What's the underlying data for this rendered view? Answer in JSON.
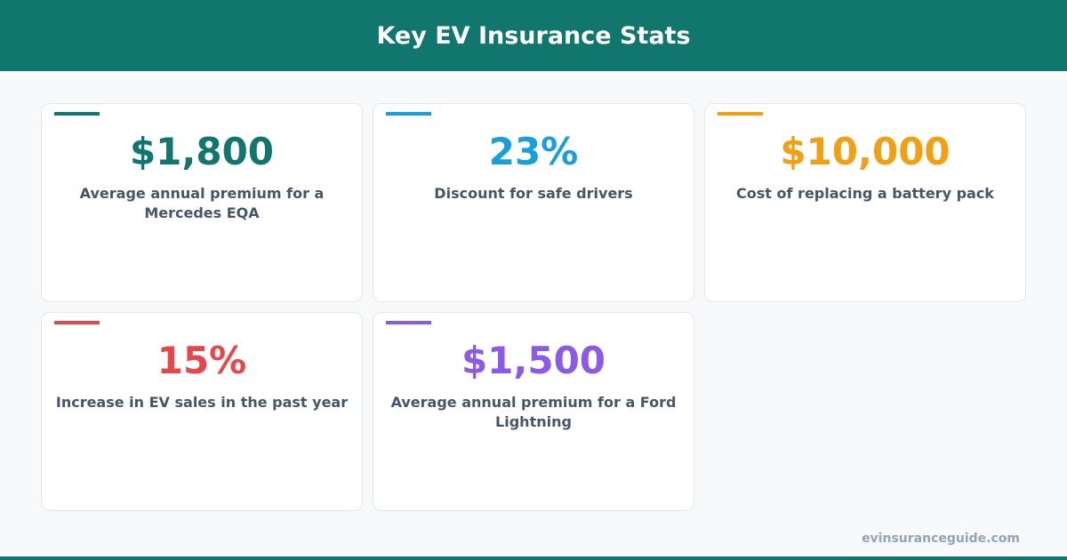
{
  "header": {
    "title": "Key EV Insurance Stats"
  },
  "cards": [
    {
      "value": "$1,800",
      "label": "Average annual premium for a Mercedes EQA",
      "color": "#11766e"
    },
    {
      "value": "23%",
      "label": "Discount for safe drivers",
      "color": "#169fd8"
    },
    {
      "value": "$10,000",
      "label": "Cost of replacing a battery pack",
      "color": "#f0a012"
    },
    {
      "value": "15%",
      "label": "Increase in EV sales in the past year",
      "color": "#e5474b"
    },
    {
      "value": "$1,500",
      "label": "Average annual premium for a Ford Lightning",
      "color": "#8b5ae6"
    }
  ],
  "footer": {
    "site": "evinsuranceguide.com"
  }
}
